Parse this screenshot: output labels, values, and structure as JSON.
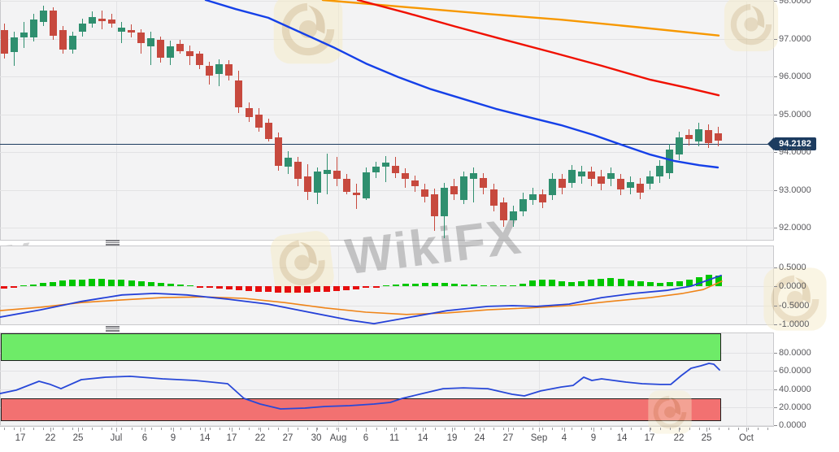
{
  "watermark": {
    "brand": "WikiFX",
    "left_fragment": "X"
  },
  "price_badge": {
    "label": "94.2182",
    "value": 94.2182
  },
  "colors": {
    "candle_up": "#2f8f6f",
    "candle_down": "#c7493e",
    "ma_blue": "#1540e8",
    "ma_red": "#f01000",
    "ma_orange": "#f79800",
    "hist_up": "#00c600",
    "hist_down": "#e60e0e",
    "macd_line": "#2440d8",
    "signal_line": "#ef8418",
    "band_green": "#6eeb68",
    "band_red": "#f27171",
    "stoch_line": "#2848d8",
    "price_line": "#1d3c60",
    "badge_bg": "#1d3c60",
    "badge_text": "#ffffff"
  },
  "axis": {
    "x_ticks": [
      [
        "17",
        25
      ],
      [
        "22",
        62
      ],
      [
        "25",
        96
      ],
      [
        "Jul",
        143
      ],
      [
        "6",
        178
      ],
      [
        "9",
        213
      ],
      [
        "14",
        252
      ],
      [
        "17",
        285
      ],
      [
        "22",
        320
      ],
      [
        "27",
        354
      ],
      [
        "30",
        389
      ],
      [
        "Aug",
        416
      ],
      [
        "6",
        450
      ],
      [
        "11",
        485
      ],
      [
        "14",
        520
      ],
      [
        "19",
        556
      ],
      [
        "24",
        590
      ],
      [
        "27",
        625
      ],
      [
        "Sep",
        663
      ],
      [
        "4",
        694
      ],
      [
        "9",
        730
      ],
      [
        "14",
        765
      ],
      [
        "17",
        799
      ],
      [
        "22",
        835
      ],
      [
        "25",
        869
      ],
      [
        "Oct",
        918
      ]
    ],
    "month_grid_x": [
      143,
      416,
      663,
      918
    ],
    "main_y": [
      [
        "98.0000",
        98
      ],
      [
        "97.0000",
        97
      ],
      [
        "96.0000",
        96
      ],
      [
        "95.0000",
        95
      ],
      [
        "94.0000",
        94
      ],
      [
        "93.0000",
        93
      ],
      [
        "92.0000",
        92
      ]
    ],
    "macd_y": [
      [
        "0.5000",
        0.5
      ],
      [
        "0.0000",
        0
      ],
      [
        "-0.5000",
        -0.5
      ],
      [
        "-1.0000",
        -1
      ]
    ],
    "stoch_y": [
      [
        "80.0000",
        80
      ],
      [
        "60.0000",
        60
      ],
      [
        "40.0000",
        40
      ],
      [
        "20.0000",
        20
      ],
      [
        "0.0000",
        0
      ]
    ]
  },
  "chart_data": {
    "type": "candlestick",
    "title": "",
    "legend": "none",
    "grid": true,
    "panels": [
      {
        "name": "price",
        "ylim": [
          91.68,
          98.03
        ],
        "price_line": 94.2182,
        "candles_ohlc": [
          [
            97.24,
            97.41,
            96.49,
            96.62
          ],
          [
            96.66,
            97.2,
            96.28,
            97.05
          ],
          [
            97.03,
            97.46,
            96.77,
            97.16
          ],
          [
            97.05,
            97.67,
            96.94,
            97.52
          ],
          [
            97.46,
            97.89,
            97.35,
            97.74
          ],
          [
            97.74,
            97.84,
            96.98,
            97.09
          ],
          [
            97.24,
            97.35,
            96.6,
            96.71
          ],
          [
            96.71,
            97.2,
            96.6,
            97.09
          ],
          [
            97.2,
            97.54,
            97.07,
            97.41
          ],
          [
            97.41,
            97.72,
            97.29,
            97.57
          ],
          [
            97.54,
            97.76,
            97.26,
            97.48
          ],
          [
            97.52,
            97.67,
            97.29,
            97.41
          ],
          [
            97.2,
            97.44,
            96.88,
            97.29
          ],
          [
            97.24,
            97.39,
            97.05,
            97.18
          ],
          [
            97.18,
            97.26,
            96.6,
            96.88
          ],
          [
            96.81,
            97.2,
            96.3,
            97.03
          ],
          [
            96.98,
            97.07,
            96.38,
            96.51
          ],
          [
            96.51,
            96.96,
            96.3,
            96.81
          ],
          [
            96.86,
            96.98,
            96.6,
            96.68
          ],
          [
            96.68,
            96.83,
            96.3,
            96.55
          ],
          [
            96.6,
            96.68,
            96.21,
            96.3
          ],
          [
            96.28,
            96.4,
            95.8,
            96.02
          ],
          [
            96.08,
            96.47,
            95.76,
            96.34
          ],
          [
            96.34,
            96.43,
            95.91,
            96.02
          ],
          [
            95.91,
            96.15,
            95.05,
            95.2
          ],
          [
            95.16,
            95.33,
            94.81,
            94.94
          ],
          [
            94.99,
            95.18,
            94.55,
            94.66
          ],
          [
            94.79,
            94.9,
            94.28,
            94.36
          ],
          [
            94.4,
            94.53,
            93.52,
            93.65
          ],
          [
            93.63,
            94.04,
            93.42,
            93.85
          ],
          [
            93.76,
            93.89,
            93.11,
            93.29
          ],
          [
            93.37,
            93.69,
            92.73,
            92.96
          ],
          [
            92.94,
            93.61,
            92.64,
            93.5
          ],
          [
            93.42,
            93.97,
            92.9,
            93.54
          ],
          [
            93.52,
            93.87,
            93.11,
            93.29
          ],
          [
            93.29,
            93.42,
            92.88,
            92.96
          ],
          [
            92.94,
            93.16,
            92.51,
            92.86
          ],
          [
            92.79,
            93.59,
            92.73,
            93.48
          ],
          [
            93.46,
            93.76,
            93.33,
            93.63
          ],
          [
            93.63,
            93.91,
            93.22,
            93.72
          ],
          [
            93.65,
            93.89,
            93.33,
            93.44
          ],
          [
            93.44,
            93.57,
            93.07,
            93.29
          ],
          [
            93.26,
            93.39,
            92.96,
            93.11
          ],
          [
            93.01,
            93.16,
            92.68,
            92.83
          ],
          [
            92.9,
            93.05,
            91.93,
            92.3
          ],
          [
            92.3,
            93.2,
            91.72,
            93.07
          ],
          [
            93.11,
            93.29,
            92.75,
            92.9
          ],
          [
            92.73,
            93.5,
            92.64,
            93.37
          ],
          [
            93.29,
            93.59,
            92.68,
            93.44
          ],
          [
            93.33,
            93.46,
            92.9,
            93.07
          ],
          [
            93.01,
            93.16,
            92.43,
            92.58
          ],
          [
            92.68,
            92.81,
            92.02,
            92.21
          ],
          [
            92.21,
            92.58,
            92.04,
            92.43
          ],
          [
            92.43,
            92.94,
            92.3,
            92.77
          ],
          [
            92.75,
            93.07,
            92.62,
            92.9
          ],
          [
            92.9,
            93.03,
            92.53,
            92.68
          ],
          [
            92.86,
            93.44,
            92.75,
            93.29
          ],
          [
            93.29,
            93.42,
            92.9,
            93.07
          ],
          [
            93.2,
            93.67,
            93.07,
            93.54
          ],
          [
            93.37,
            93.65,
            93.16,
            93.5
          ],
          [
            93.5,
            93.63,
            93.11,
            93.29
          ],
          [
            93.37,
            93.54,
            92.99,
            93.16
          ],
          [
            93.29,
            93.61,
            93.11,
            93.44
          ],
          [
            93.29,
            93.42,
            92.86,
            93.01
          ],
          [
            93.07,
            93.37,
            92.9,
            93.22
          ],
          [
            93.16,
            93.33,
            92.77,
            92.94
          ],
          [
            93.16,
            93.52,
            93.01,
            93.37
          ],
          [
            93.37,
            93.8,
            93.2,
            93.65
          ],
          [
            93.44,
            94.23,
            93.29,
            94.08
          ],
          [
            93.95,
            94.55,
            93.8,
            94.4
          ],
          [
            94.45,
            94.62,
            94.19,
            94.36
          ],
          [
            94.28,
            94.79,
            94.15,
            94.62
          ],
          [
            94.58,
            94.73,
            94.12,
            94.25
          ],
          [
            94.51,
            94.68,
            94.15,
            94.3
          ]
        ],
        "ma_blue": [
          [
            253,
            98.03
          ],
          [
            290,
            97.79
          ],
          [
            330,
            97.56
          ],
          [
            370,
            97.17
          ],
          [
            410,
            96.78
          ],
          [
            450,
            96.35
          ],
          [
            490,
            95.99
          ],
          [
            530,
            95.67
          ],
          [
            570,
            95.41
          ],
          [
            610,
            95.15
          ],
          [
            650,
            94.93
          ],
          [
            690,
            94.72
          ],
          [
            730,
            94.46
          ],
          [
            770,
            94.16
          ],
          [
            800,
            93.94
          ],
          [
            830,
            93.77
          ],
          [
            860,
            93.66
          ],
          [
            883,
            93.6
          ]
        ],
        "ma_red": [
          [
            440,
            98.03
          ],
          [
            500,
            97.69
          ],
          [
            560,
            97.33
          ],
          [
            620,
            96.98
          ],
          [
            680,
            96.64
          ],
          [
            740,
            96.29
          ],
          [
            800,
            95.92
          ],
          [
            845,
            95.71
          ],
          [
            884,
            95.51
          ]
        ],
        "ma_orange": [
          [
            397,
            98.03
          ],
          [
            500,
            97.84
          ],
          [
            600,
            97.66
          ],
          [
            690,
            97.51
          ],
          [
            780,
            97.32
          ],
          [
            884,
            97.09
          ]
        ]
      },
      {
        "name": "macd",
        "ylim": [
          -1.05,
          1.0
        ],
        "histogram": [
          -0.06,
          -0.05,
          0.02,
          0.05,
          0.08,
          0.11,
          0.14,
          0.16,
          0.18,
          0.19,
          0.19,
          0.18,
          0.17,
          0.15,
          0.13,
          0.11,
          0.08,
          0.06,
          0.04,
          0.02,
          -0.02,
          -0.05,
          -0.07,
          -0.09,
          -0.11,
          -0.13,
          -0.14,
          -0.15,
          -0.16,
          -0.17,
          -0.17,
          -0.16,
          -0.15,
          -0.14,
          -0.12,
          -0.1,
          -0.08,
          -0.05,
          -0.02,
          0.02,
          0.04,
          0.06,
          0.07,
          0.08,
          0.09,
          0.08,
          0.07,
          0.05,
          0.04,
          0.03,
          0.02,
          0.02,
          0.03,
          0.06,
          0.14,
          0.17,
          0.18,
          0.13,
          0.1,
          0.12,
          0.17,
          0.2,
          0.21,
          0.19,
          0.15,
          0.12,
          0.1,
          0.08,
          0.1,
          0.13,
          0.18,
          0.24,
          0.3,
          0.27
        ],
        "macd_line": [
          [
            0,
            -0.81
          ],
          [
            50,
            -0.62
          ],
          [
            100,
            -0.4
          ],
          [
            150,
            -0.23
          ],
          [
            190,
            -0.19
          ],
          [
            230,
            -0.23
          ],
          [
            280,
            -0.34
          ],
          [
            330,
            -0.47
          ],
          [
            380,
            -0.68
          ],
          [
            430,
            -0.89
          ],
          [
            460,
            -0.98
          ],
          [
            500,
            -0.83
          ],
          [
            550,
            -0.64
          ],
          [
            600,
            -0.53
          ],
          [
            630,
            -0.51
          ],
          [
            660,
            -0.53
          ],
          [
            700,
            -0.47
          ],
          [
            740,
            -0.3
          ],
          [
            780,
            -0.19
          ],
          [
            820,
            -0.11
          ],
          [
            850,
            0.0
          ],
          [
            870,
            0.15
          ],
          [
            887,
            0.28
          ]
        ],
        "signal_line": [
          [
            0,
            -0.64
          ],
          [
            50,
            -0.55
          ],
          [
            100,
            -0.43
          ],
          [
            150,
            -0.36
          ],
          [
            200,
            -0.3
          ],
          [
            250,
            -0.28
          ],
          [
            300,
            -0.32
          ],
          [
            350,
            -0.43
          ],
          [
            400,
            -0.57
          ],
          [
            450,
            -0.68
          ],
          [
            500,
            -0.74
          ],
          [
            550,
            -0.7
          ],
          [
            600,
            -0.62
          ],
          [
            650,
            -0.57
          ],
          [
            700,
            -0.51
          ],
          [
            750,
            -0.4
          ],
          [
            800,
            -0.3
          ],
          [
            840,
            -0.19
          ],
          [
            865,
            -0.09
          ],
          [
            888,
            0.13
          ]
        ]
      },
      {
        "name": "stochastic",
        "ylim": [
          0,
          104
        ],
        "zones": {
          "overbought": [
            71,
            103
          ],
          "oversold": [
            4.5,
            29.7
          ]
        },
        "k_line": [
          [
            0,
            35
          ],
          [
            20,
            38.7
          ],
          [
            48,
            48.5
          ],
          [
            62,
            45
          ],
          [
            75,
            40.4
          ],
          [
            100,
            50.3
          ],
          [
            130,
            53
          ],
          [
            160,
            54
          ],
          [
            200,
            51.2
          ],
          [
            240,
            49.4
          ],
          [
            280,
            45.8
          ],
          [
            300,
            29.7
          ],
          [
            320,
            23.4
          ],
          [
            345,
            18
          ],
          [
            375,
            18.9
          ],
          [
            400,
            20.7
          ],
          [
            430,
            21.6
          ],
          [
            460,
            23.4
          ],
          [
            480,
            25.2
          ],
          [
            495,
            29.7
          ],
          [
            520,
            35.1
          ],
          [
            545,
            40.4
          ],
          [
            570,
            41.3
          ],
          [
            600,
            40.4
          ],
          [
            630,
            34.2
          ],
          [
            645,
            32.4
          ],
          [
            665,
            37.8
          ],
          [
            690,
            42.2
          ],
          [
            705,
            44
          ],
          [
            718,
            53
          ],
          [
            728,
            49.4
          ],
          [
            740,
            51.2
          ],
          [
            755,
            49.4
          ],
          [
            770,
            47.6
          ],
          [
            790,
            45.8
          ],
          [
            812,
            45
          ],
          [
            825,
            45
          ],
          [
            838,
            54.8
          ],
          [
            850,
            62.9
          ],
          [
            862,
            65.6
          ],
          [
            872,
            68.3
          ],
          [
            878,
            67.4
          ],
          [
            885,
            61.1
          ]
        ]
      }
    ]
  }
}
